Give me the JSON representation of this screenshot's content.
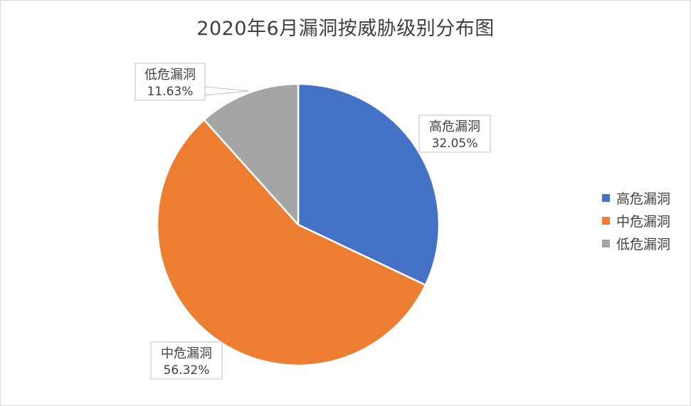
{
  "chart_data": {
    "type": "pie",
    "title": "2020年6月漏洞按威胁级别分布图",
    "categories": [
      "高危漏洞",
      "中危漏洞",
      "低危漏洞"
    ],
    "values": [
      32.05,
      56.32,
      11.63
    ],
    "value_labels": [
      "32.05%",
      "56.32%",
      "11.63%"
    ],
    "colors": [
      "#4472C4",
      "#ED7D31",
      "#A5A5A5"
    ],
    "start_angle_deg": 0,
    "direction": "clockwise",
    "legend_position": "right",
    "data_labels": "callout"
  }
}
